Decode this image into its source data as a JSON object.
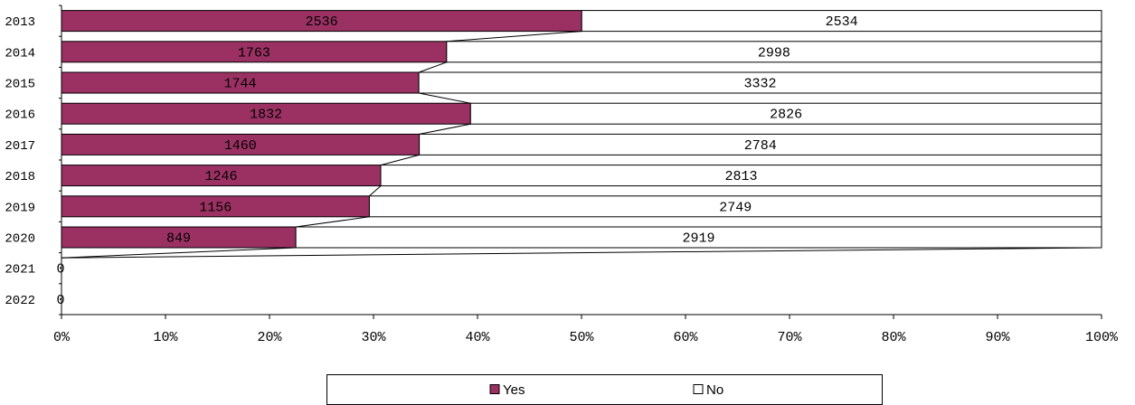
{
  "chart_data": {
    "type": "bar",
    "orientation": "horizontal",
    "stacking": "percent",
    "categories": [
      "2013",
      "2014",
      "2015",
      "2016",
      "2017",
      "2018",
      "2019",
      "2020",
      "2021",
      "2022"
    ],
    "series": [
      {
        "name": "Yes",
        "values": [
          2536,
          1763,
          1744,
          1832,
          1460,
          1246,
          1156,
          849,
          0,
          0
        ],
        "color": "#9B3163"
      },
      {
        "name": "No",
        "values": [
          2534,
          2998,
          3332,
          2826,
          2784,
          2813,
          2749,
          2919,
          0,
          0
        ],
        "color": "#FFFFFF"
      }
    ],
    "xlim": [
      0,
      100
    ],
    "x_ticks": [
      "0%",
      "10%",
      "20%",
      "30%",
      "40%",
      "50%",
      "60%",
      "70%",
      "80%",
      "90%",
      "100%"
    ],
    "zero_labels": [
      "0",
      "0"
    ],
    "series_lines": true,
    "grid": false,
    "legend_position": "bottom"
  }
}
